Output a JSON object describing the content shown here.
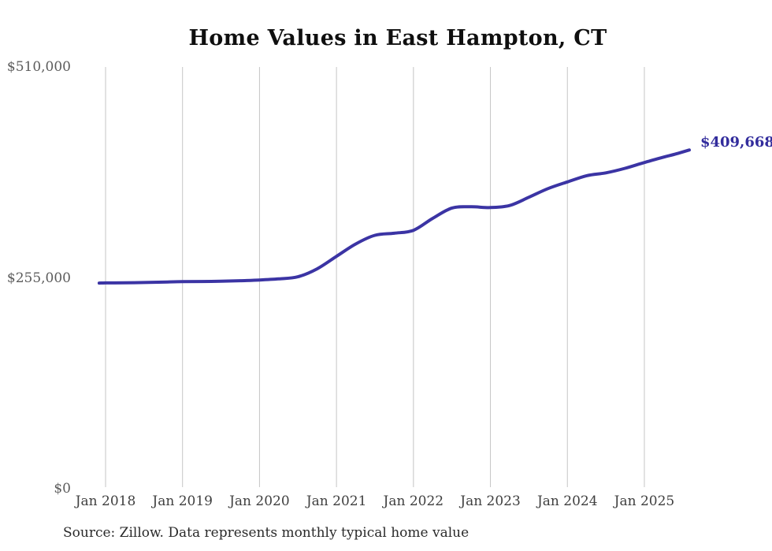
{
  "page": {
    "background": "#ffffff"
  },
  "chart": {
    "title": "Home Values in East Hampton, CT",
    "end_label": "$409,668",
    "source": "Source: Zillow. Data represents monthly typical home value"
  },
  "chart_data": {
    "type": "line",
    "title": "Home Values in East Hampton, CT",
    "xlabel": "",
    "ylabel": "",
    "ylim": [
      0,
      510000
    ],
    "grid": "vertical-only",
    "legend": "none",
    "line_color": "#3b34a4",
    "grid_color": "#c5c5c5",
    "end_label": "$409,668",
    "end_label_color": "#322c9c",
    "y_ticks": [
      {
        "label": "$510,000",
        "value": 510000
      },
      {
        "label": "$255,000",
        "value": 255000
      },
      {
        "label": "$0",
        "value": 0
      }
    ],
    "x_ticks": [
      {
        "label": "Jan 2018",
        "date": "2018-01"
      },
      {
        "label": "Jan 2019",
        "date": "2019-01"
      },
      {
        "label": "Jan 2020",
        "date": "2020-01"
      },
      {
        "label": "Jan 2021",
        "date": "2021-01"
      },
      {
        "label": "Jan 2022",
        "date": "2022-01"
      },
      {
        "label": "Jan 2023",
        "date": "2023-01"
      },
      {
        "label": "Jan 2024",
        "date": "2024-01"
      },
      {
        "label": "Jan 2025",
        "date": "2025-01"
      }
    ],
    "series": [
      {
        "name": "Monthly typical home value",
        "points": [
          {
            "date": "2017-12",
            "value": 248700
          },
          {
            "date": "2018-01",
            "value": 248900
          },
          {
            "date": "2018-04",
            "value": 249000
          },
          {
            "date": "2018-07",
            "value": 249400
          },
          {
            "date": "2018-10",
            "value": 249900
          },
          {
            "date": "2019-01",
            "value": 250400
          },
          {
            "date": "2019-04",
            "value": 250600
          },
          {
            "date": "2019-07",
            "value": 251000
          },
          {
            "date": "2019-10",
            "value": 251600
          },
          {
            "date": "2020-01",
            "value": 252400
          },
          {
            "date": "2020-04",
            "value": 253800
          },
          {
            "date": "2020-07",
            "value": 256300
          },
          {
            "date": "2020-10",
            "value": 266000
          },
          {
            "date": "2021-01",
            "value": 281000
          },
          {
            "date": "2021-04",
            "value": 296000
          },
          {
            "date": "2021-07",
            "value": 306500
          },
          {
            "date": "2021-10",
            "value": 309000
          },
          {
            "date": "2022-01",
            "value": 312500
          },
          {
            "date": "2022-04",
            "value": 327000
          },
          {
            "date": "2022-07",
            "value": 339500
          },
          {
            "date": "2022-10",
            "value": 341000
          },
          {
            "date": "2023-01",
            "value": 340000
          },
          {
            "date": "2023-04",
            "value": 342500
          },
          {
            "date": "2023-07",
            "value": 352500
          },
          {
            "date": "2023-10",
            "value": 363000
          },
          {
            "date": "2024-01",
            "value": 371000
          },
          {
            "date": "2024-04",
            "value": 378500
          },
          {
            "date": "2024-07",
            "value": 382000
          },
          {
            "date": "2024-10",
            "value": 387500
          },
          {
            "date": "2025-01",
            "value": 394500
          },
          {
            "date": "2025-04",
            "value": 401000
          },
          {
            "date": "2025-06",
            "value": 405000
          },
          {
            "date": "2025-08",
            "value": 409668
          }
        ]
      }
    ]
  }
}
